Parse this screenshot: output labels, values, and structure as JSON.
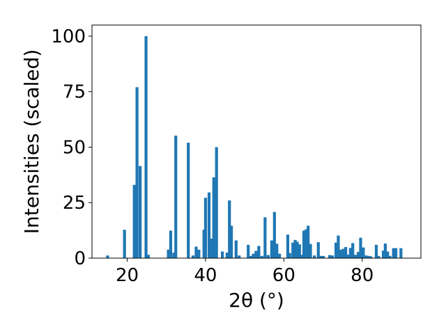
{
  "chart_data": {
    "type": "bar",
    "xlabel": "2θ (°)",
    "ylabel": "Intensities (scaled)",
    "xlim": [
      11,
      95
    ],
    "ylim": [
      0,
      105
    ],
    "xticks": [
      20,
      40,
      60,
      80
    ],
    "yticks": [
      0,
      25,
      50,
      75,
      100
    ],
    "bar_color": "#1f77b4",
    "grid": false,
    "points": [
      [
        15.0,
        1.2
      ],
      [
        19.3,
        12.8
      ],
      [
        21.8,
        33.0
      ],
      [
        22.5,
        77.0
      ],
      [
        23.3,
        41.5
      ],
      [
        24.8,
        100.0
      ],
      [
        25.4,
        1.5
      ],
      [
        30.5,
        3.8
      ],
      [
        31.1,
        12.4
      ],
      [
        31.9,
        2.5
      ],
      [
        32.4,
        55.2
      ],
      [
        35.6,
        52.0
      ],
      [
        36.8,
        1.2
      ],
      [
        37.6,
        5.2
      ],
      [
        38.3,
        3.8
      ],
      [
        39.6,
        12.8
      ],
      [
        40.0,
        27.2
      ],
      [
        40.9,
        29.6
      ],
      [
        41.5,
        8.8
      ],
      [
        42.1,
        36.4
      ],
      [
        42.8,
        50.0
      ],
      [
        44.3,
        3.0
      ],
      [
        45.5,
        2.5
      ],
      [
        46.1,
        26.0
      ],
      [
        46.6,
        14.6
      ],
      [
        47.8,
        8.0
      ],
      [
        48.6,
        1.2
      ],
      [
        50.9,
        6.0
      ],
      [
        51.5,
        1.0
      ],
      [
        52.2,
        2.0
      ],
      [
        52.9,
        3.3
      ],
      [
        53.6,
        5.5
      ],
      [
        54.4,
        1.0
      ],
      [
        55.2,
        18.4
      ],
      [
        56.0,
        1.4
      ],
      [
        56.9,
        8.0
      ],
      [
        57.6,
        20.8
      ],
      [
        58.2,
        6.5
      ],
      [
        58.9,
        2.0
      ],
      [
        61.0,
        10.6
      ],
      [
        61.5,
        2.3
      ],
      [
        62.3,
        7.0
      ],
      [
        62.9,
        8.2
      ],
      [
        63.4,
        7.4
      ],
      [
        64.0,
        6.2
      ],
      [
        64.6,
        1.5
      ],
      [
        65.1,
        12.4
      ],
      [
        65.7,
        13.0
      ],
      [
        66.2,
        14.6
      ],
      [
        66.8,
        6.4
      ],
      [
        67.8,
        1.2
      ],
      [
        68.8,
        7.2
      ],
      [
        69.5,
        1.0
      ],
      [
        70.1,
        1.0
      ],
      [
        71.7,
        1.4
      ],
      [
        72.4,
        1.2
      ],
      [
        73.3,
        7.0
      ],
      [
        73.9,
        10.2
      ],
      [
        74.5,
        3.8
      ],
      [
        75.2,
        4.2
      ],
      [
        75.8,
        5.0
      ],
      [
        76.4,
        1.6
      ],
      [
        77.0,
        4.6
      ],
      [
        77.6,
        6.8
      ],
      [
        78.3,
        1.5
      ],
      [
        79.0,
        2.8
      ],
      [
        79.6,
        9.2
      ],
      [
        80.3,
        4.8
      ],
      [
        81.0,
        1.2
      ],
      [
        81.7,
        1.0
      ],
      [
        82.2,
        0.8
      ],
      [
        83.6,
        6.0
      ],
      [
        84.2,
        1.0
      ],
      [
        85.4,
        3.4
      ],
      [
        85.9,
        6.6
      ],
      [
        86.5,
        3.0
      ],
      [
        87.1,
        1.0
      ],
      [
        88.0,
        4.5
      ],
      [
        88.6,
        4.5
      ],
      [
        89.9,
        4.5
      ]
    ]
  }
}
